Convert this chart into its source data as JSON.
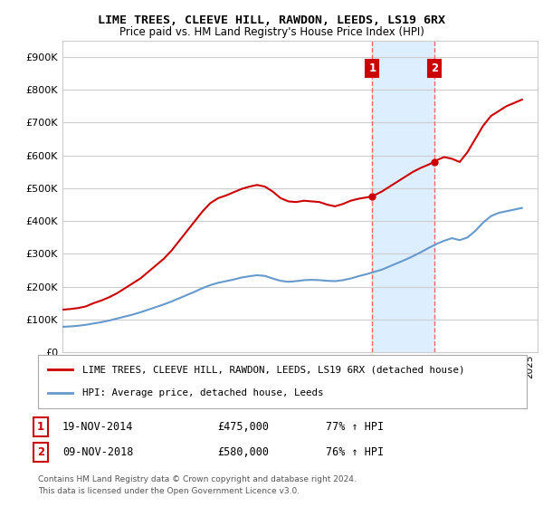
{
  "title": "LIME TREES, CLEEVE HILL, RAWDON, LEEDS, LS19 6RX",
  "subtitle": "Price paid vs. HM Land Registry's House Price Index (HPI)",
  "ylabel_ticks": [
    "£0",
    "£100K",
    "£200K",
    "£300K",
    "£400K",
    "£500K",
    "£600K",
    "£700K",
    "£800K",
    "£900K"
  ],
  "ytick_values": [
    0,
    100000,
    200000,
    300000,
    400000,
    500000,
    600000,
    700000,
    800000,
    900000
  ],
  "ylim": [
    0,
    950000
  ],
  "xlim_start": 1995.0,
  "xlim_end": 2025.5,
  "legend_line1": "LIME TREES, CLEEVE HILL, RAWDON, LEEDS, LS19 6RX (detached house)",
  "legend_line2": "HPI: Average price, detached house, Leeds",
  "annotation1_label": "1",
  "annotation1_date": "19-NOV-2014",
  "annotation1_price": "£475,000",
  "annotation1_hpi": "77% ↑ HPI",
  "annotation2_label": "2",
  "annotation2_date": "09-NOV-2018",
  "annotation2_price": "£580,000",
  "annotation2_hpi": "76% ↑ HPI",
  "footnote_line1": "Contains HM Land Registry data © Crown copyright and database right 2024.",
  "footnote_line2": "This data is licensed under the Open Government Licence v3.0.",
  "red_line_color": "#cc0000",
  "blue_line_color": "#6699cc",
  "shaded_color": "#ddeeff",
  "vline_color": "#ff6666",
  "annotation_box_color": "#cc0000",
  "grid_color": "#cccccc",
  "background_color": "#ffffff",
  "sale1_x": 2014.89,
  "sale1_y": 475000,
  "sale2_x": 2018.86,
  "sale2_y": 580000,
  "red_x": [
    1995.0,
    1995.5,
    1996.0,
    1996.5,
    1997.0,
    1997.5,
    1998.0,
    1998.5,
    1999.0,
    1999.5,
    2000.0,
    2000.5,
    2001.0,
    2001.5,
    2002.0,
    2002.5,
    2003.0,
    2003.5,
    2004.0,
    2004.5,
    2005.0,
    2005.5,
    2006.0,
    2006.5,
    2007.0,
    2007.5,
    2008.0,
    2008.5,
    2009.0,
    2009.5,
    2010.0,
    2010.5,
    2011.0,
    2011.5,
    2012.0,
    2012.5,
    2013.0,
    2013.5,
    2014.0,
    2014.5,
    2014.89,
    2015.0,
    2015.5,
    2016.0,
    2016.5,
    2017.0,
    2017.5,
    2018.0,
    2018.5,
    2018.86,
    2019.0,
    2019.5,
    2020.0,
    2020.5,
    2021.0,
    2021.5,
    2022.0,
    2022.5,
    2023.0,
    2023.5,
    2024.0,
    2024.5
  ],
  "red_y": [
    130000,
    132000,
    135000,
    140000,
    150000,
    158000,
    168000,
    180000,
    195000,
    210000,
    225000,
    245000,
    265000,
    285000,
    310000,
    340000,
    370000,
    400000,
    430000,
    455000,
    470000,
    478000,
    488000,
    498000,
    505000,
    510000,
    505000,
    490000,
    470000,
    460000,
    458000,
    462000,
    460000,
    458000,
    450000,
    445000,
    452000,
    462000,
    468000,
    472000,
    475000,
    478000,
    490000,
    505000,
    520000,
    535000,
    550000,
    562000,
    572000,
    580000,
    585000,
    595000,
    590000,
    580000,
    610000,
    650000,
    690000,
    720000,
    735000,
    750000,
    760000,
    770000
  ],
  "blue_x": [
    1995.0,
    1995.5,
    1996.0,
    1996.5,
    1997.0,
    1997.5,
    1998.0,
    1998.5,
    1999.0,
    1999.5,
    2000.0,
    2000.5,
    2001.0,
    2001.5,
    2002.0,
    2002.5,
    2003.0,
    2003.5,
    2004.0,
    2004.5,
    2005.0,
    2005.5,
    2006.0,
    2006.5,
    2007.0,
    2007.5,
    2008.0,
    2008.5,
    2009.0,
    2009.5,
    2010.0,
    2010.5,
    2011.0,
    2011.5,
    2012.0,
    2012.5,
    2013.0,
    2013.5,
    2014.0,
    2014.5,
    2015.0,
    2015.5,
    2016.0,
    2016.5,
    2017.0,
    2017.5,
    2018.0,
    2018.5,
    2019.0,
    2019.5,
    2020.0,
    2020.5,
    2021.0,
    2021.5,
    2022.0,
    2022.5,
    2023.0,
    2023.5,
    2024.0,
    2024.5
  ],
  "blue_y": [
    78000,
    79000,
    81000,
    84000,
    88000,
    92000,
    97000,
    103000,
    109000,
    115000,
    122000,
    130000,
    138000,
    146000,
    155000,
    165000,
    175000,
    185000,
    196000,
    205000,
    212000,
    217000,
    222000,
    228000,
    232000,
    235000,
    233000,
    225000,
    218000,
    215000,
    217000,
    220000,
    221000,
    220000,
    218000,
    217000,
    220000,
    225000,
    232000,
    238000,
    245000,
    252000,
    262000,
    272000,
    282000,
    293000,
    305000,
    318000,
    330000,
    340000,
    348000,
    342000,
    350000,
    370000,
    395000,
    415000,
    425000,
    430000,
    435000,
    440000
  ]
}
